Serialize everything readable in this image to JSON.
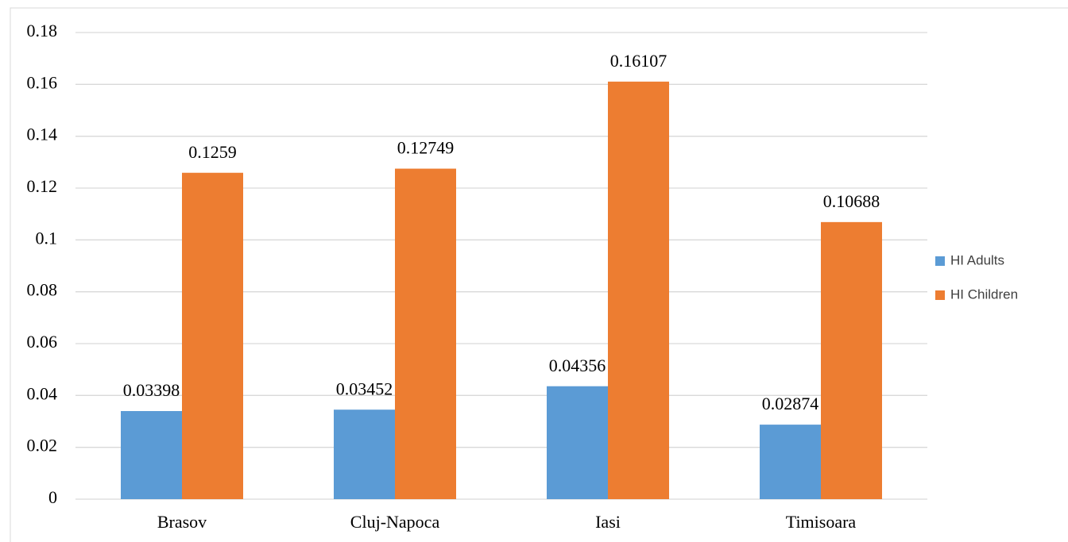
{
  "chart_data": {
    "type": "bar",
    "categories": [
      "Brasov",
      "Cluj-Napoca",
      "Iasi",
      "Timisoara"
    ],
    "series": [
      {
        "name": "HI Adults",
        "color": "#5b9bd5",
        "values": [
          0.03398,
          0.03452,
          0.04356,
          0.02874
        ]
      },
      {
        "name": "HI Children",
        "color": "#ed7d31",
        "values": [
          0.1259,
          0.12749,
          0.16107,
          0.10688
        ]
      }
    ],
    "ylim": [
      0,
      0.18
    ],
    "yticks": [
      0,
      0.02,
      0.04,
      0.06,
      0.08,
      0.1,
      0.12,
      0.14,
      0.16,
      0.18
    ],
    "grid": true,
    "legend": "right"
  }
}
